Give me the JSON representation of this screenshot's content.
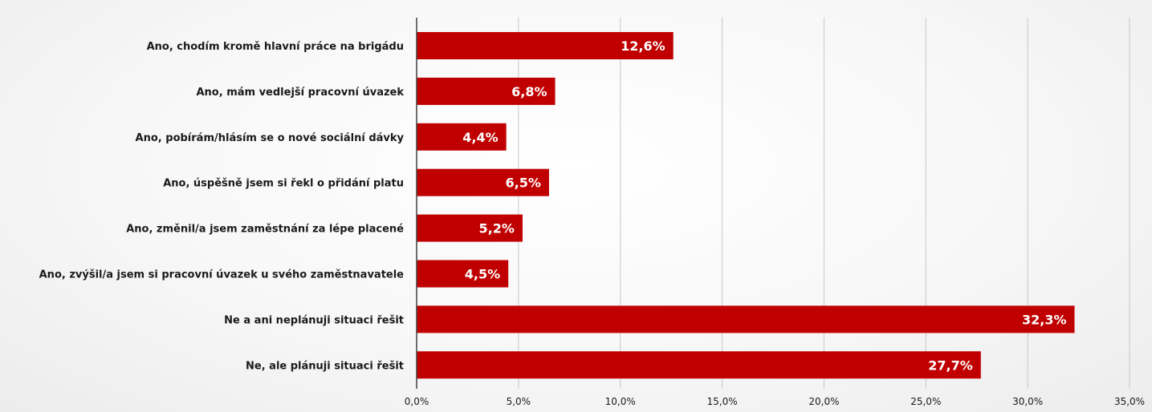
{
  "chart_data": {
    "type": "bar",
    "orientation": "horizontal",
    "categories": [
      "Ano, chodím kromě hlavní práce na brigádu",
      "Ano, mám vedlejší pracovní úvazek",
      "Ano, pobírám/hlásím se o nové sociální dávky",
      "Ano, úspěšně jsem si řekl o přidání platu",
      "Ano, změnil/a jsem zaměstnání za lépe placené",
      "Ano, zvýšil/a jsem si pracovní úvazek u svého zaměstnavatele",
      "Ne a ani neplánuji situaci řešit",
      "Ne, ale plánuji situaci řešit"
    ],
    "values": [
      12.6,
      6.8,
      4.4,
      6.5,
      5.2,
      4.5,
      32.3,
      27.7
    ],
    "data_labels": [
      "12,6%",
      "6,8%",
      "4,4%",
      "6,5%",
      "5,2%",
      "4,5%",
      "32,3%",
      "27,7%"
    ],
    "xlim": [
      0,
      35
    ],
    "x_ticks": [
      "0,0%",
      "5,0%",
      "10,0%",
      "15,0%",
      "20,0%",
      "25,0%",
      "30,0%",
      "35,0%"
    ],
    "grid": true,
    "bar_color": "#c00000",
    "grid_color": "#c8c8c8",
    "axis_color": "#404040",
    "label_color": "#1a1a1a",
    "data_label_color": "#ffffff",
    "title": "",
    "xlabel": "",
    "ylabel": ""
  }
}
